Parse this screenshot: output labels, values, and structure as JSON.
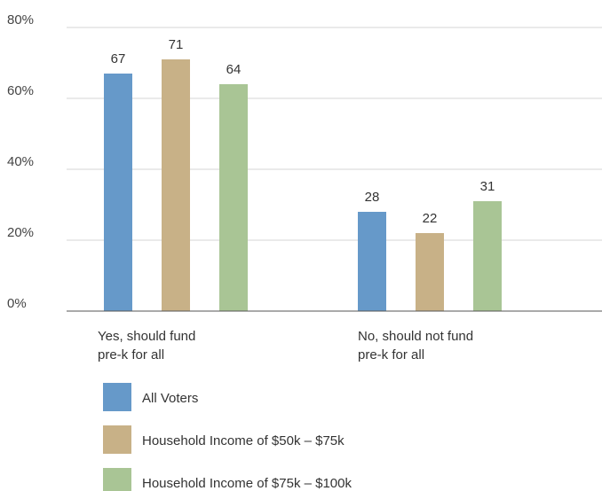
{
  "chart_data": {
    "type": "bar",
    "categories": [
      [
        "Yes, should fund",
        "pre-k for all"
      ],
      [
        "No, should not fund",
        "pre-k for all"
      ]
    ],
    "series": [
      {
        "name": "All Voters",
        "values": [
          67,
          28
        ],
        "color": "#6699c9"
      },
      {
        "name": "Household Income of $50k – $75k",
        "values": [
          71,
          22
        ],
        "color": "#c8b187"
      },
      {
        "name": "Household Income of $75k – $100k",
        "values": [
          64,
          31
        ],
        "color": "#a9c595"
      }
    ],
    "y_ticks": [
      "0%",
      "20%",
      "40%",
      "60%",
      "80%"
    ],
    "ylim": [
      0,
      80
    ],
    "grid": true,
    "legend_position": "bottom-left"
  }
}
